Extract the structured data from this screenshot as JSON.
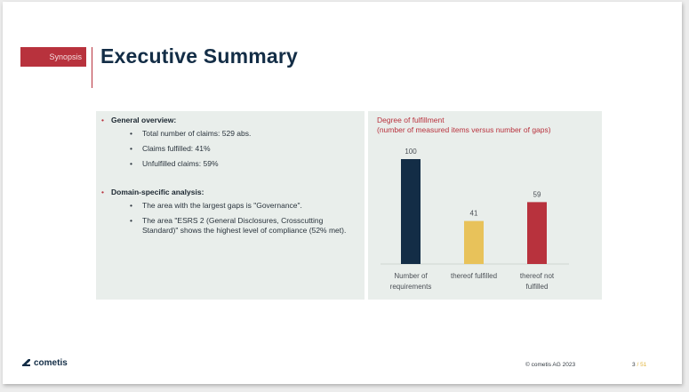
{
  "header": {
    "section_label": "Synopsis",
    "title": "Executive Summary"
  },
  "summary": {
    "overview_heading": "General overview:",
    "overview_items": [
      "Total number of claims: 529 abs.",
      "Claims fulfilled: 41%",
      "Unfulfilled claims: 59%"
    ],
    "domain_heading": "Domain-specific analysis:",
    "domain_items": [
      "The area with the largest gaps is \"Governance\".",
      "The area \"ESRS 2 (General Disclosures, Crosscutting Standard)\" shows the highest level of compliance (52% met)."
    ]
  },
  "chart_data": {
    "type": "bar",
    "title": "Degree of fulfillment",
    "subtitle": "(number of measured items versus number of gaps)",
    "categories": [
      "Number of requirements",
      "thereof fulfilled",
      "thereof not fulfilled"
    ],
    "category_lines": [
      [
        "Number of",
        "requirements"
      ],
      [
        "thereof fulfilled"
      ],
      [
        "thereof not",
        "fulfilled"
      ]
    ],
    "values": [
      100,
      41,
      59
    ],
    "colors": [
      "#132d46",
      "#e8c25a",
      "#b8323d"
    ],
    "ylim": [
      0,
      100
    ],
    "xlabel": "",
    "ylabel": "",
    "grid": false,
    "legend": "none"
  },
  "footer": {
    "logo_text": "cometis",
    "copyright": "© cometis AG 2023",
    "page_current": "3",
    "page_separator": "/",
    "page_total": "51"
  }
}
